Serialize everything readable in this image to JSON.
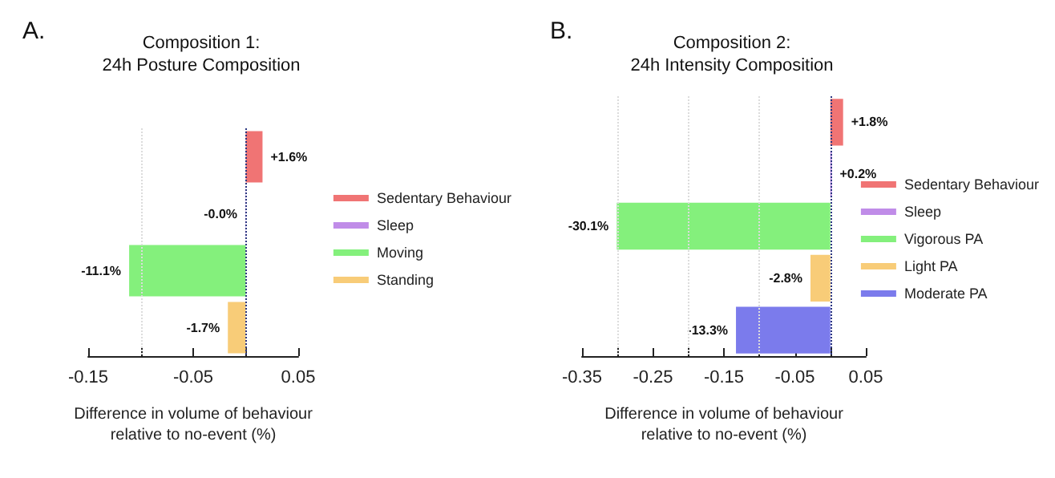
{
  "chart_data": [
    {
      "type": "bar",
      "orientation": "horizontal",
      "title": "Composition 1:\n24h Posture Composition",
      "xlabel": "Difference in volume of behaviour\nrelative to no-event (%)",
      "annotations": [
        "A."
      ],
      "categories": [
        null,
        null,
        null,
        null
      ],
      "series": [
        {
          "name": "Sedentary Behaviour",
          "color": "#f07474",
          "values": [
            0.016,
            null,
            null,
            null
          ],
          "value_labels": [
            "+1.6%",
            null,
            null,
            null
          ]
        },
        {
          "name": "Sleep",
          "color": "#c08ce8",
          "values": [
            null,
            -0.0003,
            null,
            null
          ],
          "value_labels": [
            null,
            "-0.0%",
            null,
            null
          ]
        },
        {
          "name": "Moving",
          "color": "#84f07c",
          "values": [
            null,
            null,
            -0.111,
            null
          ],
          "value_labels": [
            null,
            null,
            "-11.1%",
            null
          ]
        },
        {
          "name": "Standing",
          "color": "#f8cc78",
          "values": [
            null,
            null,
            null,
            -0.017
          ],
          "value_labels": [
            null,
            null,
            null,
            "-1.7%"
          ]
        }
      ],
      "xlim": [
        -0.15,
        0.05
      ],
      "xticks": [
        -0.15,
        {
          "value": -0.1,
          "label": null
        },
        -0.05,
        {
          "value": 0,
          "label": null
        },
        0.05
      ],
      "ref_lines": [
        {
          "axis": "x",
          "value": -0.1,
          "label": null,
          "color": "#dcdcdc",
          "line_style": "dotted"
        },
        {
          "axis": "x",
          "value": 0,
          "label": null,
          "color": "#2b3680",
          "line_style": "dotted"
        }
      ],
      "legend": "right",
      "tick_labels": "x",
      "grid": false
    },
    {
      "type": "bar",
      "orientation": "horizontal",
      "title": "Composition 2:\n24h Intensity Composition",
      "xlabel": "Difference in volume of behaviour\nrelative to no-event (%)",
      "annotations": [
        "B."
      ],
      "categories": [
        null,
        null,
        null,
        null,
        null
      ],
      "series": [
        {
          "name": "Sedentary Behaviour",
          "color": "#f07474",
          "values": [
            0.018,
            null,
            null,
            null,
            null
          ],
          "value_labels": [
            "+1.8%",
            null,
            null,
            null,
            null
          ]
        },
        {
          "name": "Sleep",
          "color": "#c08ce8",
          "values": [
            null,
            0.002,
            null,
            null,
            null
          ],
          "value_labels": [
            null,
            "+0.2%",
            null,
            null,
            null
          ]
        },
        {
          "name": "Vigorous PA",
          "color": "#84f07c",
          "values": [
            null,
            null,
            -0.301,
            null,
            null
          ],
          "value_labels": [
            null,
            null,
            "-30.1%",
            null,
            null
          ]
        },
        {
          "name": "Light PA",
          "color": "#f8cc78",
          "values": [
            null,
            null,
            null,
            -0.028,
            null
          ],
          "value_labels": [
            null,
            null,
            null,
            "-2.8%",
            null
          ]
        },
        {
          "name": "Moderate PA",
          "color": "#7b7bec",
          "values": [
            null,
            null,
            null,
            null,
            -0.133
          ],
          "value_labels": [
            null,
            null,
            null,
            null,
            "-13.3%"
          ]
        }
      ],
      "xlim": [
        -0.35,
        0.05
      ],
      "xticks": [
        -0.35,
        {
          "value": -0.3,
          "label": null
        },
        -0.25,
        {
          "value": -0.2,
          "label": null
        },
        -0.15,
        {
          "value": -0.1,
          "label": null
        },
        -0.05,
        {
          "value": 0,
          "label": null
        },
        0.05
      ],
      "ref_lines": [
        {
          "axis": "x",
          "value": -0.3,
          "label": null,
          "color": "#dcdcdc",
          "line_style": "dotted"
        },
        {
          "axis": "x",
          "value": -0.2,
          "label": null,
          "color": "#dcdcdc",
          "line_style": "dotted"
        },
        {
          "axis": "x",
          "value": -0.1,
          "label": null,
          "color": "#dcdcdc",
          "line_style": "dotted"
        },
        {
          "axis": "x",
          "value": 0,
          "label": null,
          "color": "#2b3680",
          "line_style": "dotted"
        }
      ],
      "legend": "right",
      "tick_labels": "x",
      "grid": false
    }
  ]
}
